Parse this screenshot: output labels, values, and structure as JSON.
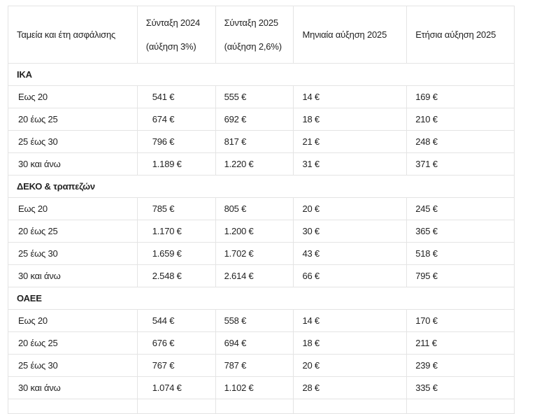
{
  "headers": [
    {
      "line1": "Ταμεία και έτη ασφάλισης",
      "line2": ""
    },
    {
      "line1": "Σύνταξη 2024",
      "line2": "(αύξηση 3%)"
    },
    {
      "line1": "Σύνταξη 2025",
      "line2": "(αύξηση 2,6%)"
    },
    {
      "line1": "Μηνιαία αύξηση 2025",
      "line2": ""
    },
    {
      "line1": "Ετήσια αύξηση 2025",
      "line2": ""
    }
  ],
  "sections": [
    {
      "title": "ΙΚΑ",
      "rows": [
        [
          "Εως 20",
          "541 €",
          "555 €",
          "14 €",
          "169 €"
        ],
        [
          "20 έως 25",
          "674 €",
          "692 €",
          "18 €",
          "210 €"
        ],
        [
          "25 έως 30",
          "796 €",
          "817 €",
          "21 €",
          "248 €"
        ],
        [
          "30 και άνω",
          "1.189 €",
          "1.220 €",
          "31 €",
          "371 €"
        ]
      ]
    },
    {
      "title": "ΔΕΚΟ & τραπεζών",
      "rows": [
        [
          "Εως 20",
          "785 €",
          "805 €",
          "20 €",
          "245 €"
        ],
        [
          "20 έως 25",
          "1.170 €",
          "1.200 €",
          "30 €",
          "365 €"
        ],
        [
          "25 έως 30",
          "1.659 €",
          "1.702 €",
          "43 €",
          "518 €"
        ],
        [
          "30 και άνω",
          "2.548 €",
          "2.614 €",
          "66 €",
          "795 €"
        ]
      ]
    },
    {
      "title": "ΟΑΕΕ",
      "rows": [
        [
          "Εως 20",
          "544 €",
          "558 €",
          "14 €",
          "170 €"
        ],
        [
          "20 έως 25",
          "676 €",
          "694 €",
          "18 €",
          "211 €"
        ],
        [
          "25 έως 30",
          "767 €",
          "787 €",
          "20 €",
          "239 €"
        ],
        [
          "30 και άνω",
          "1.074 €",
          "1.102 €",
          "28 €",
          "335 €"
        ]
      ]
    }
  ]
}
